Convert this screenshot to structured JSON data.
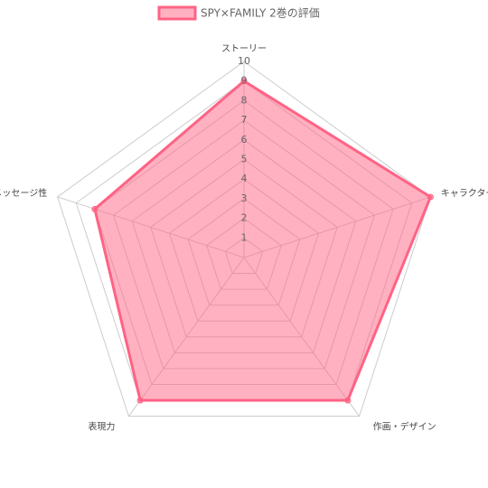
{
  "chart_data": {
    "type": "radar",
    "categories": [
      "ストーリー",
      "キャラクター",
      "作画・デザイン",
      "表現力",
      "メッセージ性"
    ],
    "series": [
      {
        "name": "SPY×FAMILY 2巻の評価",
        "color": "#ff6384",
        "values": [
          9,
          10,
          9,
          9,
          8
        ]
      }
    ],
    "rlim": [
      0,
      10
    ],
    "rticks": [
      1,
      2,
      3,
      4,
      5,
      6,
      7,
      8,
      9,
      10
    ],
    "grid": true,
    "legend": "top"
  }
}
